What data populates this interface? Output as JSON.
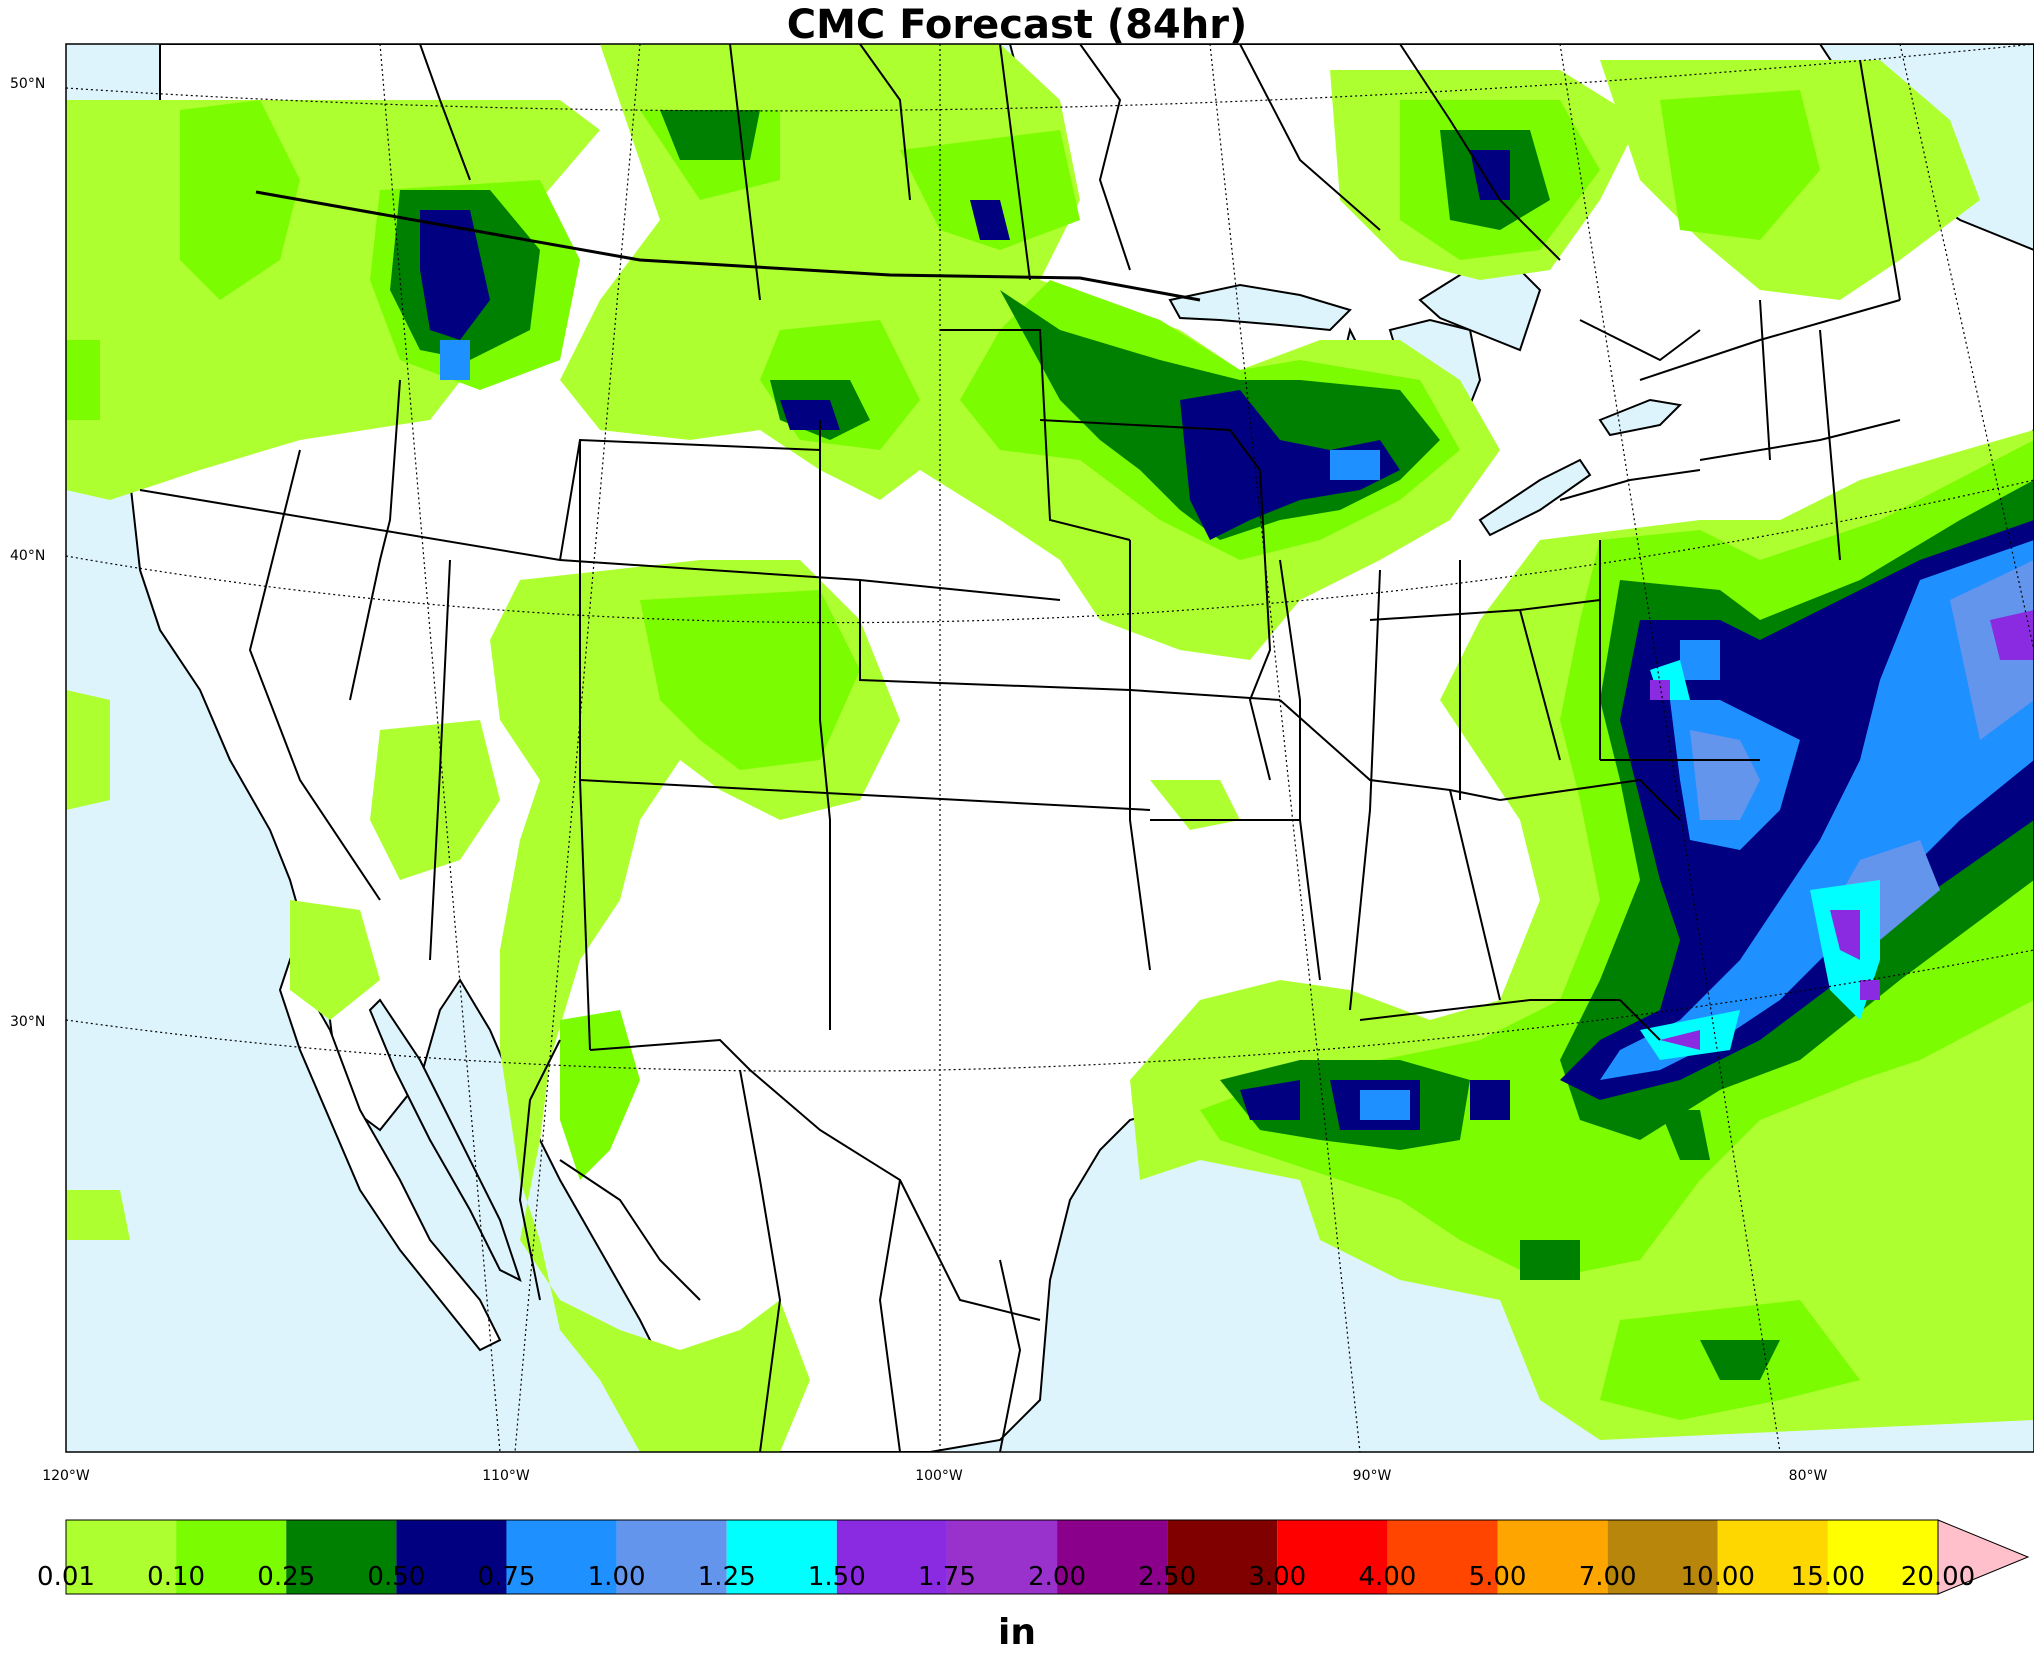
{
  "title": "CMC Forecast (84hr)",
  "lat_labels": [
    "50°N",
    "40°N",
    "30°N"
  ],
  "lon_labels": [
    "120°W",
    "110°W",
    "100°W",
    "90°W",
    "80°W"
  ],
  "colorbar": {
    "unit": "in",
    "ticks": [
      "0.01",
      "0.10",
      "0.25",
      "0.50",
      "0.75",
      "1.00",
      "1.25",
      "1.50",
      "1.75",
      "2.00",
      "2.50",
      "3.00",
      "4.00",
      "5.00",
      "7.00",
      "10.00",
      "15.00",
      "20.00"
    ],
    "colors": [
      "#adff2f",
      "#7cfc00",
      "#008000",
      "#000080",
      "#1e90ff",
      "#6495ed",
      "#00ffff",
      "#8a2be2",
      "#9932cc",
      "#8b008b",
      "#800000",
      "#ff0000",
      "#ff4500",
      "#ffa500",
      "#b8860b",
      "#ffd700",
      "#ffff00"
    ],
    "extend_color": "#ffc0cb"
  },
  "colors": {
    "ocean": "#ddf4fc",
    "land": "#ffffff",
    "border": "#000000"
  }
}
